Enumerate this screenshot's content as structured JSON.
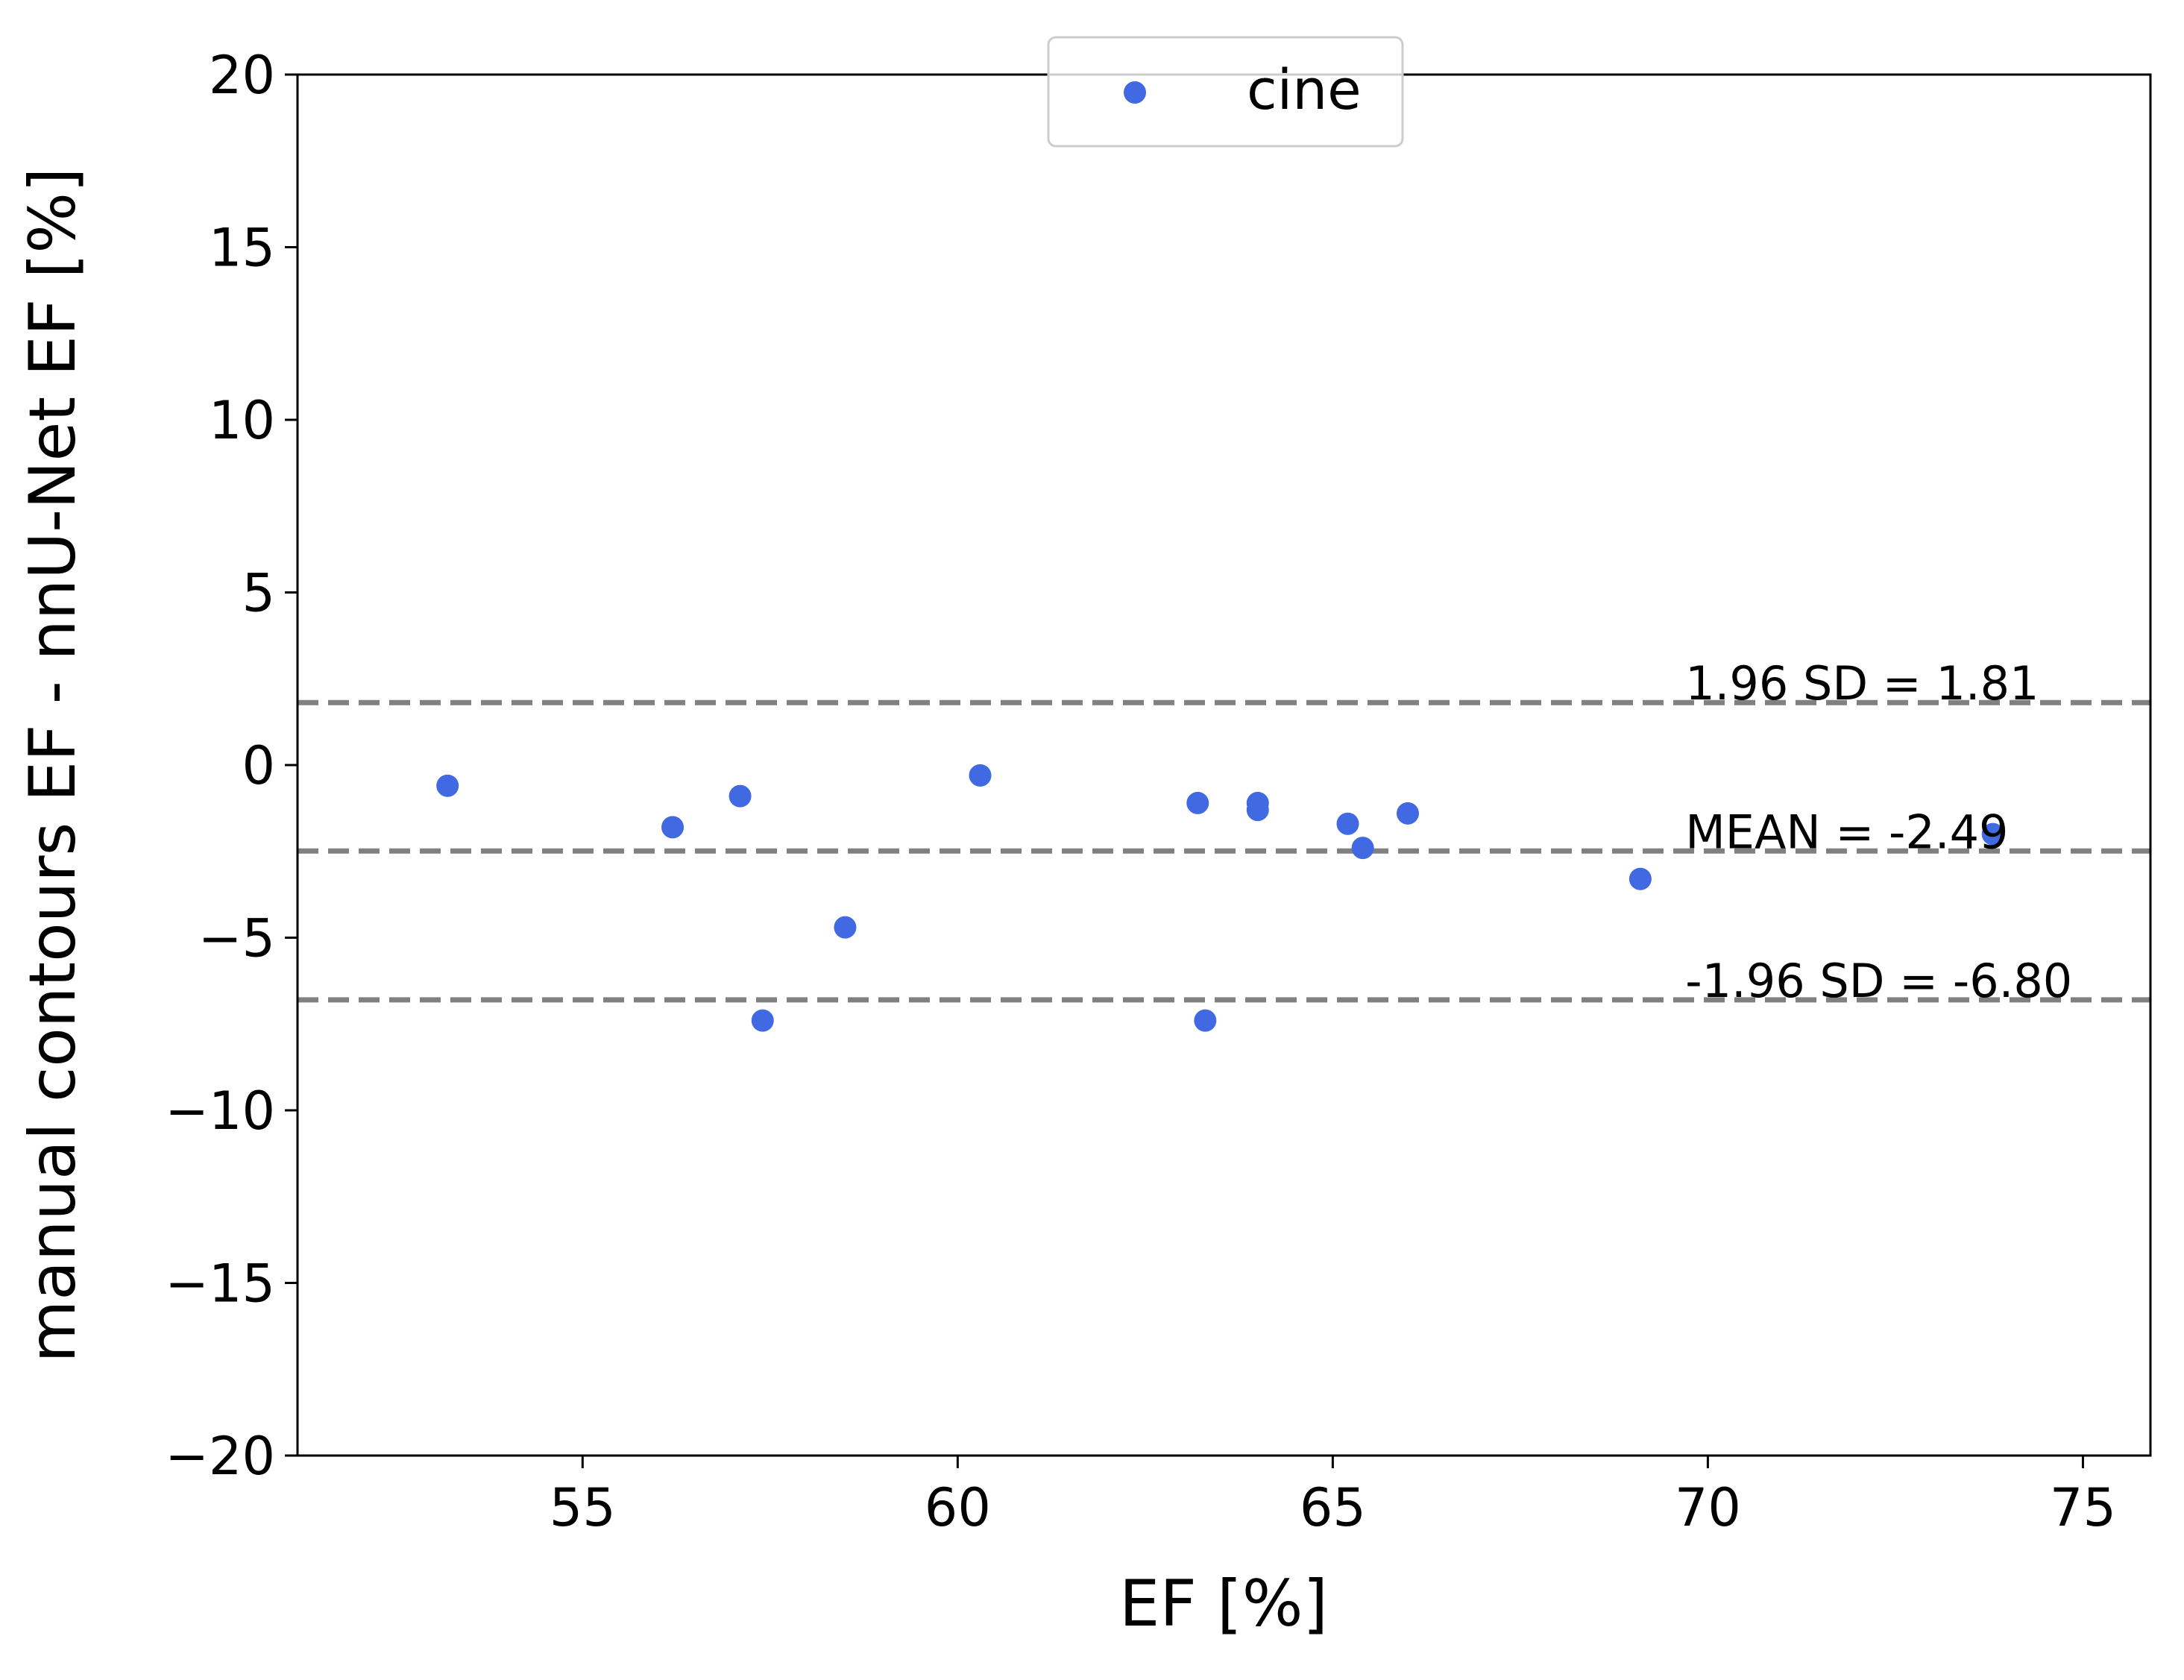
{
  "chart_data": {
    "type": "scatter",
    "xlabel": "EF [%]",
    "ylabel": "manual contours EF - nnU-Net EF [%]",
    "xlim": [
      51.2,
      75.9
    ],
    "ylim": [
      -20,
      20
    ],
    "xticks": [
      55,
      60,
      65,
      70,
      75
    ],
    "xtick_labels": [
      "55",
      "60",
      "65",
      "70",
      "75"
    ],
    "yticks": [
      -20,
      -15,
      -10,
      -5,
      0,
      5,
      10,
      15,
      20
    ],
    "ytick_labels": [
      "−20",
      "−15",
      "−10",
      "−5",
      "0",
      "5",
      "10",
      "15",
      "20"
    ],
    "grid": false,
    "legend_position": "top-center",
    "series": [
      {
        "name": "cine",
        "color": "#4169E1",
        "x": [
          53.2,
          56.2,
          57.1,
          57.4,
          58.5,
          60.3,
          63.2,
          63.3,
          64.0,
          64.0,
          65.2,
          65.4,
          66.0,
          69.1,
          73.8
        ],
        "y": [
          -0.6,
          -1.8,
          -0.9,
          -7.4,
          -4.7,
          -0.3,
          -1.1,
          -7.4,
          -1.1,
          -1.3,
          -1.7,
          -2.4,
          -1.4,
          -3.3,
          -2.0
        ]
      }
    ],
    "reference_lines": [
      {
        "value": 1.81,
        "label": "1.96 SD = 1.81"
      },
      {
        "value": -2.49,
        "label": "MEAN = -2.49"
      },
      {
        "value": -6.8,
        "label": "-1.96 SD = -6.80"
      }
    ],
    "reference_line_color": "#808080",
    "reference_label_x": 69.7
  }
}
